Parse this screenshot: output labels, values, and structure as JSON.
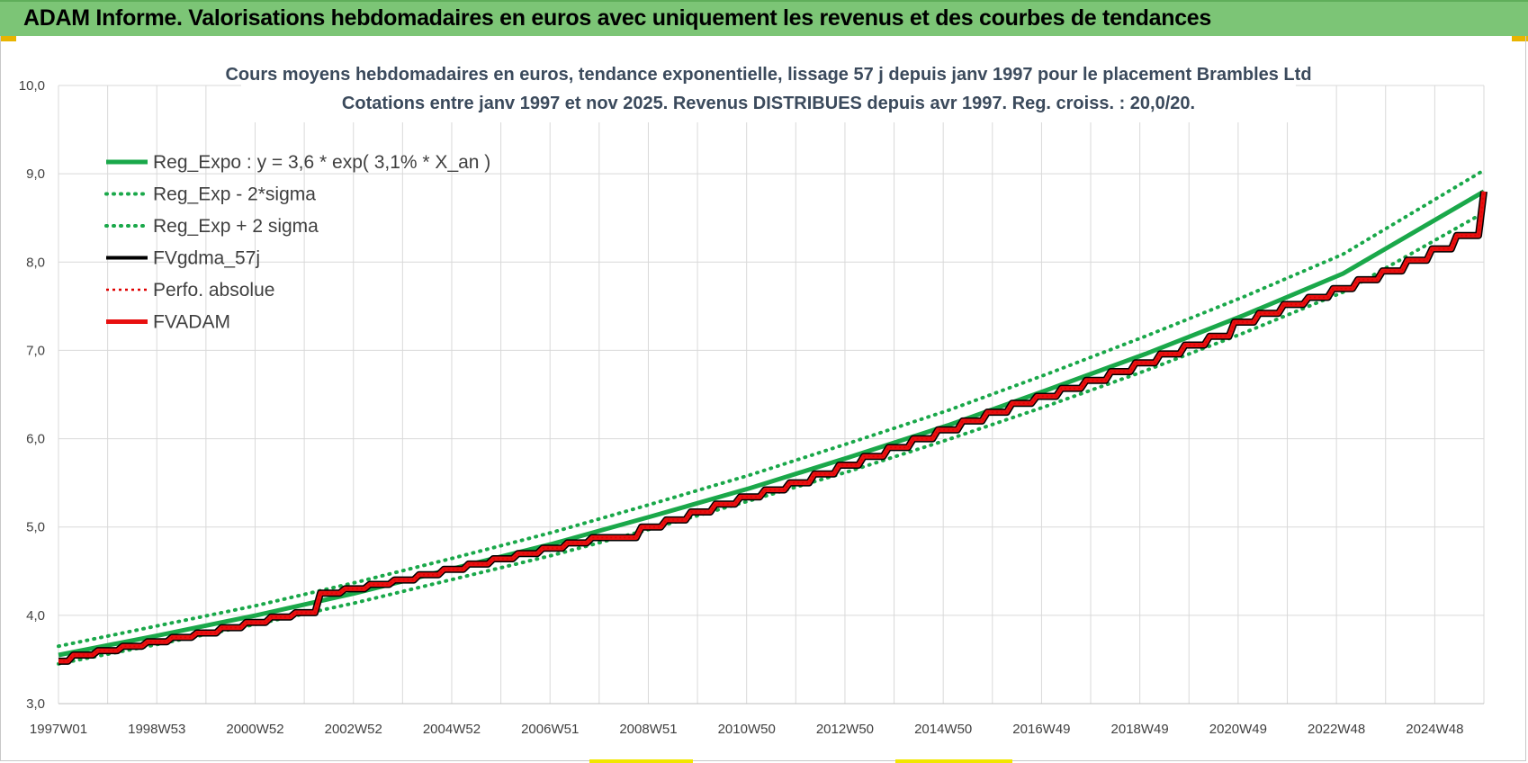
{
  "header": {
    "title": "ADAM Informe. Valorisations hebdomadaires en euros avec uniquement les revenus et des courbes de tendances"
  },
  "colors": {
    "header_bg": "#7cc576",
    "reg_expo": "#1aa84a",
    "bands": "#1aa84a",
    "fvgdma": "#000000",
    "perfo": "#e00000",
    "fvadam": "#e81010",
    "grid": "#d9d9d9"
  },
  "chart_data": {
    "type": "line",
    "title_lines": [
      "Cours moyens hebdomadaires en euros, tendance exponentielle, lissage 57 j depuis janv 1997 pour le placement Brambles Ltd",
      "Cotations entre janv 1997 et nov 2025. Revenus DISTRIBUES depuis avr 1997. Reg. croiss. : 20,0/20."
    ],
    "xlabel": "",
    "ylabel": "",
    "ylim": [
      3.0,
      10.0
    ],
    "ytick_labels": [
      "3,0",
      "4,0",
      "5,0",
      "6,0",
      "7,0",
      "8,0",
      "9,0",
      "10,0"
    ],
    "x_tick_labels": [
      "1997W01",
      "1998W53",
      "2000W52",
      "2002W52",
      "2004W52",
      "2006W51",
      "2008W51",
      "2010W50",
      "2012W50",
      "2014W50",
      "2016W49",
      "2018W49",
      "2020W49",
      "2022W48",
      "2024W48"
    ],
    "x_range_years": [
      1997.0,
      2025.85
    ],
    "grid": true,
    "legend_position": "top-left",
    "legend": [
      {
        "label": "Reg_Expo : y = 3,6 * exp( 3,1% *  X_an )",
        "style": "solid-thick",
        "color": "#1aa84a"
      },
      {
        "label": "Reg_Exp - 2*sigma",
        "style": "dotted",
        "color": "#1aa84a"
      },
      {
        "label": "Reg_Exp + 2 sigma",
        "style": "dotted",
        "color": "#1aa84a"
      },
      {
        "label": "FVgdma_57j",
        "style": "solid",
        "color": "#000000"
      },
      {
        "label": "Perfo. absolue",
        "style": "dotted-thin",
        "color": "#e00000"
      },
      {
        "label": "FVADAM",
        "style": "solid-thick",
        "color": "#e81010"
      }
    ],
    "series": [
      {
        "name": "Reg_Expo : y = 3,6 * exp( 3,1% *  X_an )",
        "x": [
          1997,
          1999,
          2001,
          2003,
          2005,
          2007,
          2009,
          2011,
          2013,
          2015,
          2017,
          2019,
          2021,
          2023,
          2025.85
        ],
        "values": [
          3.55,
          3.77,
          4.0,
          4.25,
          4.53,
          4.81,
          5.12,
          5.44,
          5.79,
          6.15,
          6.55,
          6.96,
          7.4,
          7.87,
          8.8
        ]
      },
      {
        "name": "Reg_Exp - 2*sigma",
        "x": [
          1997,
          1999,
          2001,
          2003,
          2005,
          2007,
          2009,
          2011,
          2013,
          2015,
          2017,
          2019,
          2021,
          2023,
          2025.85
        ],
        "values": [
          3.45,
          3.67,
          3.9,
          4.14,
          4.41,
          4.68,
          4.98,
          5.3,
          5.63,
          5.99,
          6.37,
          6.77,
          7.2,
          7.66,
          8.56
        ]
      },
      {
        "name": "Reg_Exp + 2 sigma",
        "x": [
          1997,
          1999,
          2001,
          2003,
          2005,
          2007,
          2009,
          2011,
          2013,
          2015,
          2017,
          2019,
          2021,
          2023,
          2025.85
        ],
        "values": [
          3.65,
          3.88,
          4.11,
          4.37,
          4.65,
          4.94,
          5.26,
          5.59,
          5.95,
          6.32,
          6.73,
          7.16,
          7.61,
          8.09,
          9.04
        ]
      },
      {
        "name": "FVADAM",
        "x": [
          1997.0,
          1997.3,
          1997.8,
          1998.3,
          1998.8,
          1999.3,
          1999.8,
          2000.3,
          2000.8,
          2001.3,
          2001.8,
          2002.3,
          2002.8,
          2003.3,
          2003.8,
          2004.3,
          2004.8,
          2005.3,
          2005.8,
          2006.3,
          2006.8,
          2007.3,
          2007.8,
          2008.3,
          2008.8,
          2009.3,
          2009.8,
          2010.3,
          2010.8,
          2011.3,
          2011.8,
          2012.3,
          2012.8,
          2013.3,
          2013.8,
          2014.3,
          2014.8,
          2015.3,
          2015.8,
          2016.3,
          2016.8,
          2017.3,
          2017.8,
          2018.3,
          2018.8,
          2019.3,
          2019.8,
          2020.3,
          2020.8,
          2021.3,
          2021.8,
          2022.3,
          2022.8,
          2023.3,
          2023.8,
          2024.3,
          2024.8,
          2025.3,
          2025.85
        ],
        "values": [
          3.48,
          3.55,
          3.6,
          3.65,
          3.7,
          3.75,
          3.8,
          3.86,
          3.92,
          3.98,
          4.03,
          4.25,
          4.3,
          4.35,
          4.4,
          4.46,
          4.52,
          4.58,
          4.64,
          4.7,
          4.76,
          4.82,
          4.88,
          4.88,
          5.0,
          5.08,
          5.17,
          5.26,
          5.34,
          5.42,
          5.5,
          5.6,
          5.7,
          5.8,
          5.9,
          6.0,
          6.1,
          6.2,
          6.3,
          6.4,
          6.48,
          6.57,
          6.66,
          6.76,
          6.86,
          6.96,
          7.06,
          7.16,
          7.32,
          7.42,
          7.52,
          7.6,
          7.7,
          7.8,
          7.9,
          8.02,
          8.15,
          8.3,
          8.8
        ]
      }
    ]
  }
}
